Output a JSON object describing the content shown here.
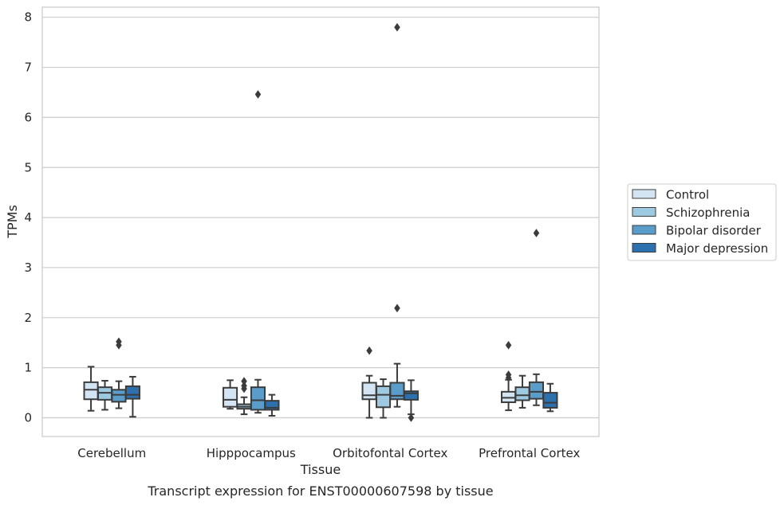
{
  "chart_data": {
    "type": "box",
    "title": "Transcript expression for ENST00000607598 by tissue",
    "xlabel": "Tissue",
    "ylabel": "TPMs",
    "ylim": [
      -0.38,
      8.18
    ],
    "yticks": [
      "0",
      "1",
      "2",
      "3",
      "4",
      "5",
      "6",
      "7",
      "8"
    ],
    "grid": "horizontal",
    "legend_position": "right",
    "categories": [
      "Cerebellum",
      "Hipppocampus",
      "Orbitofontal Cortex",
      "Prefrontal Cortex"
    ],
    "series": [
      {
        "name": "Control",
        "color": "#d3e4f3",
        "boxes": [
          {
            "whislo": 0.14,
            "q1": 0.37,
            "med": 0.56,
            "q3": 0.71,
            "whishi": 1.02,
            "fliers": []
          },
          {
            "whislo": 0.18,
            "q1": 0.22,
            "med": 0.36,
            "q3": 0.6,
            "whishi": 0.75,
            "fliers": []
          },
          {
            "whislo": 0.0,
            "q1": 0.37,
            "med": 0.45,
            "q3": 0.7,
            "whishi": 0.84,
            "fliers": [
              1.34
            ]
          },
          {
            "whislo": 0.15,
            "q1": 0.31,
            "med": 0.4,
            "q3": 0.52,
            "whishi": 0.76,
            "fliers": [
              0.86,
              0.8,
              1.45
            ]
          }
        ]
      },
      {
        "name": "Schizophrenia",
        "color": "#9ecae1",
        "boxes": [
          {
            "whislo": 0.16,
            "q1": 0.36,
            "med": 0.5,
            "q3": 0.61,
            "whishi": 0.74,
            "fliers": []
          },
          {
            "whislo": 0.07,
            "q1": 0.18,
            "med": 0.22,
            "q3": 0.27,
            "whishi": 0.41,
            "fliers": [
              0.58,
              0.64,
              0.73
            ]
          },
          {
            "whislo": 0.0,
            "q1": 0.21,
            "med": 0.46,
            "q3": 0.63,
            "whishi": 0.77,
            "fliers": []
          },
          {
            "whislo": 0.2,
            "q1": 0.35,
            "med": 0.45,
            "q3": 0.61,
            "whishi": 0.84,
            "fliers": []
          }
        ]
      },
      {
        "name": "Bipolar disorder",
        "color": "#5a9cca",
        "boxes": [
          {
            "whislo": 0.19,
            "q1": 0.32,
            "med": 0.46,
            "q3": 0.56,
            "whishi": 0.73,
            "fliers": [
              1.45,
              1.52
            ]
          },
          {
            "whislo": 0.1,
            "q1": 0.16,
            "med": 0.35,
            "q3": 0.61,
            "whishi": 0.76,
            "fliers": [
              6.46
            ]
          },
          {
            "whislo": 0.22,
            "q1": 0.37,
            "med": 0.44,
            "q3": 0.7,
            "whishi": 1.08,
            "fliers": [
              2.19,
              7.8
            ]
          },
          {
            "whislo": 0.25,
            "q1": 0.38,
            "med": 0.52,
            "q3": 0.71,
            "whishi": 0.87,
            "fliers": [
              3.69
            ]
          }
        ]
      },
      {
        "name": "Major depression",
        "color": "#2d70ae",
        "boxes": [
          {
            "whislo": 0.02,
            "q1": 0.38,
            "med": 0.46,
            "q3": 0.63,
            "whishi": 0.82,
            "fliers": []
          },
          {
            "whislo": 0.04,
            "q1": 0.16,
            "med": 0.2,
            "q3": 0.34,
            "whishi": 0.46,
            "fliers": []
          },
          {
            "whislo": 0.07,
            "q1": 0.36,
            "med": 0.49,
            "q3": 0.53,
            "whishi": 0.75,
            "fliers": [
              0.0
            ]
          },
          {
            "whislo": 0.13,
            "q1": 0.2,
            "med": 0.3,
            "q3": 0.5,
            "whishi": 0.68,
            "fliers": []
          }
        ]
      }
    ]
  }
}
